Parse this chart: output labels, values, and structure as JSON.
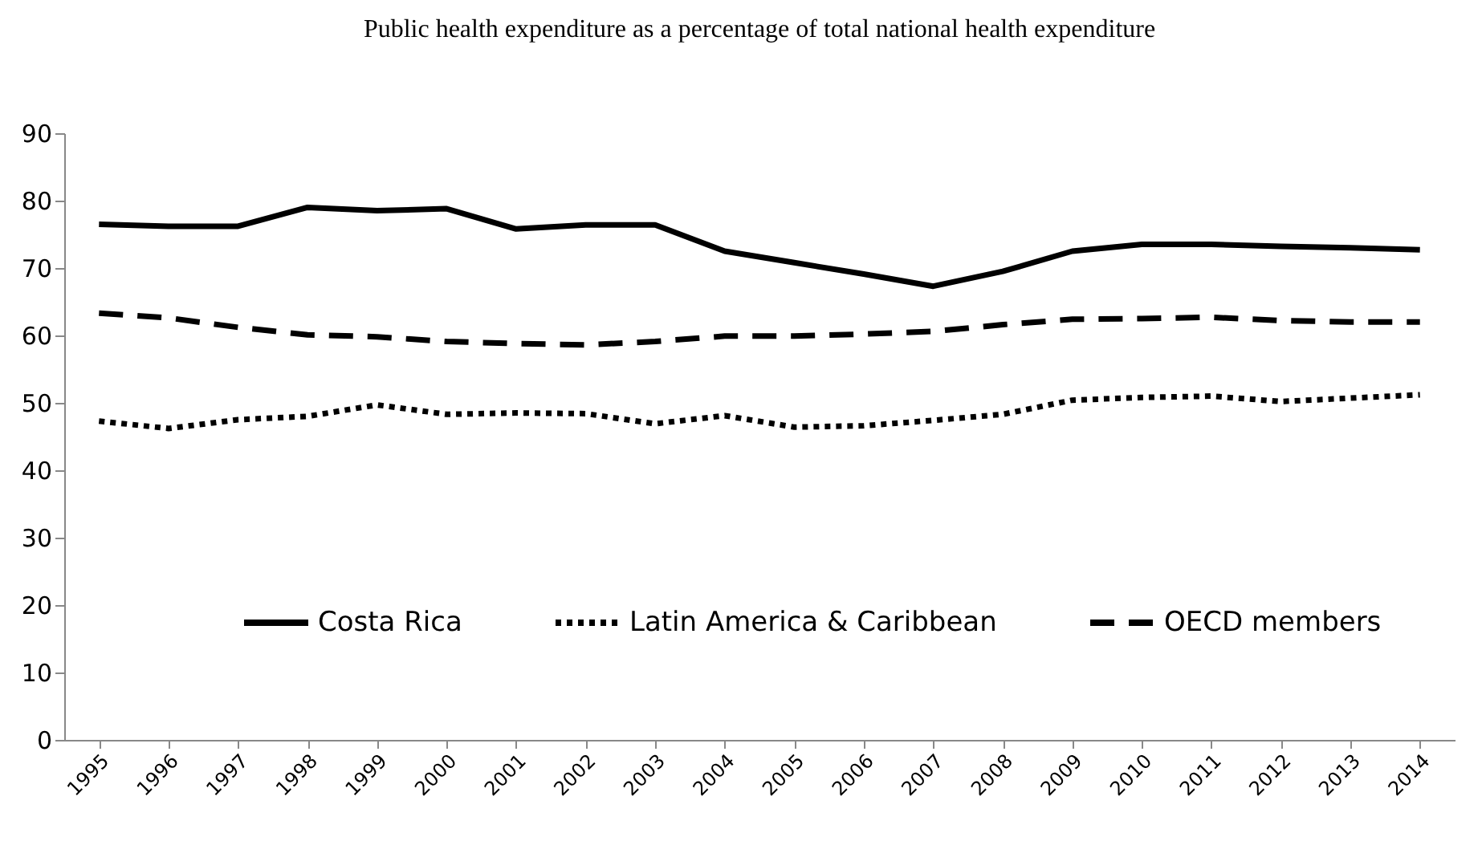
{
  "chart_data": {
    "type": "line",
    "title": "Public health expenditure as a percentage of total national health expenditure",
    "categories": [
      "1995",
      "1996",
      "1997",
      "1998",
      "1999",
      "2000",
      "2001",
      "2002",
      "2003",
      "2004",
      "2005",
      "2006",
      "2007",
      "2008",
      "2009",
      "2010",
      "2011",
      "2012",
      "2013",
      "2014"
    ],
    "series": [
      {
        "name": "Costa Rica",
        "color": "#000000",
        "line_style": "solid",
        "values": [
          76.5,
          76.2,
          76.2,
          79.0,
          78.5,
          78.8,
          75.8,
          76.4,
          76.4,
          72.5,
          70.8,
          69.1,
          67.3,
          69.5,
          72.5,
          73.5,
          73.5,
          73.2,
          73.0,
          72.7
        ]
      },
      {
        "name": "Latin America & Caribbean",
        "color": "#000000",
        "line_style": "dotted",
        "values": [
          47.3,
          46.2,
          47.5,
          48.0,
          49.7,
          48.3,
          48.5,
          48.4,
          46.9,
          48.1,
          46.4,
          46.6,
          47.4,
          48.3,
          50.4,
          50.8,
          51.0,
          50.2,
          50.7,
          51.2
        ]
      },
      {
        "name": "OECD members",
        "color": "#000000",
        "line_style": "dashed",
        "values": [
          63.3,
          62.6,
          61.2,
          60.1,
          59.8,
          59.1,
          58.8,
          58.6,
          59.1,
          59.9,
          59.9,
          60.2,
          60.6,
          61.6,
          62.4,
          62.5,
          62.7,
          62.2,
          62.0,
          62.0
        ]
      }
    ],
    "ylim": [
      0,
      90
    ],
    "yticks": [
      0,
      10,
      20,
      30,
      40,
      50,
      60,
      70,
      80,
      90
    ],
    "grid": false,
    "legend": "bottom"
  }
}
